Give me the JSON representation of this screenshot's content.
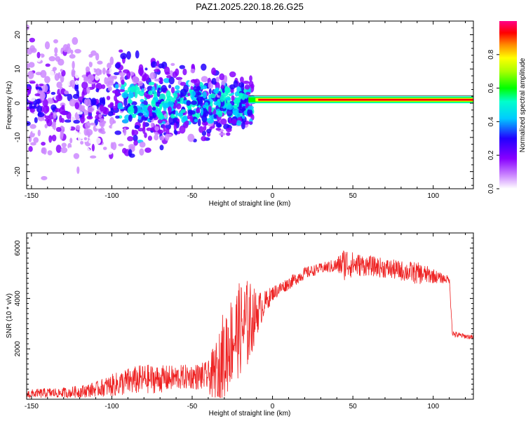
{
  "title": "PAZ1.2025.220.18.26.G25",
  "colors": {
    "snr_line": "#ee2222",
    "colormap": [
      "#ffffff",
      "#cc88ff",
      "#8800ff",
      "#2200ff",
      "#00ffff",
      "#00ff00",
      "#ffff00",
      "#ff8800",
      "#ff0000",
      "#ff0088"
    ]
  },
  "chart_data": [
    {
      "type": "heatmap",
      "name": "spectrogram",
      "title": "PAZ1.2025.220.18.26.G25",
      "xlabel": "Height of straight line (km)",
      "ylabel": "Frequency (Hz)",
      "xlim": [
        -153,
        125
      ],
      "ylim": [
        -25,
        24
      ],
      "xticks": [
        -150,
        -100,
        -50,
        0,
        50,
        100
      ],
      "yticks": [
        -20,
        -10,
        0,
        10,
        20
      ],
      "grid": false,
      "colorbar": {
        "label": "Normalized spectral amplitude",
        "range": [
          0.0,
          1.0
        ],
        "ticks": [
          0.0,
          0.2,
          0.4,
          0.6,
          0.8
        ]
      },
      "features": {
        "line_frequency_hz": 1.0,
        "noise_region_km": [
          -153,
          -20
        ],
        "coherent_line_region_km": [
          -15,
          125
        ]
      }
    },
    {
      "type": "line",
      "name": "snr",
      "xlabel": "Height of straight line (km)",
      "ylabel": "SNR (10 * v/v)",
      "xlim": [
        -153,
        125
      ],
      "ylim": [
        0,
        6600
      ],
      "xticks": [
        -150,
        -100,
        -50,
        0,
        50,
        100
      ],
      "yticks": [
        2000,
        4000,
        6000
      ],
      "grid": false,
      "series": [
        {
          "x": [
            -153,
            -140,
            -130,
            -120,
            -110,
            -100,
            -90,
            -80,
            -70,
            -60,
            -50,
            -40,
            -35,
            -30,
            -25,
            -20,
            -15,
            -10,
            -5,
            0,
            10,
            20,
            30,
            40,
            45,
            50,
            60,
            70,
            80,
            90,
            100,
            105,
            110,
            112,
            115,
            120,
            125
          ],
          "values": [
            200,
            250,
            250,
            300,
            400,
            550,
            700,
            800,
            800,
            850,
            900,
            900,
            1000,
            1800,
            2400,
            2800,
            3000,
            3400,
            3800,
            4200,
            4600,
            5000,
            5200,
            5300,
            5400,
            5350,
            5300,
            5200,
            5100,
            5000,
            4900,
            4800,
            4750,
            2600,
            2550,
            2500,
            2450
          ],
          "noise_amplitude": [
            180,
            200,
            220,
            250,
            300,
            450,
            550,
            600,
            550,
            500,
            500,
            600,
            1400,
            1900,
            1800,
            1900,
            1800,
            900,
            500,
            300,
            250,
            250,
            200,
            300,
            700,
            500,
            400,
            400,
            400,
            450,
            300,
            200,
            150,
            150,
            120,
            100,
            100
          ]
        }
      ]
    }
  ]
}
